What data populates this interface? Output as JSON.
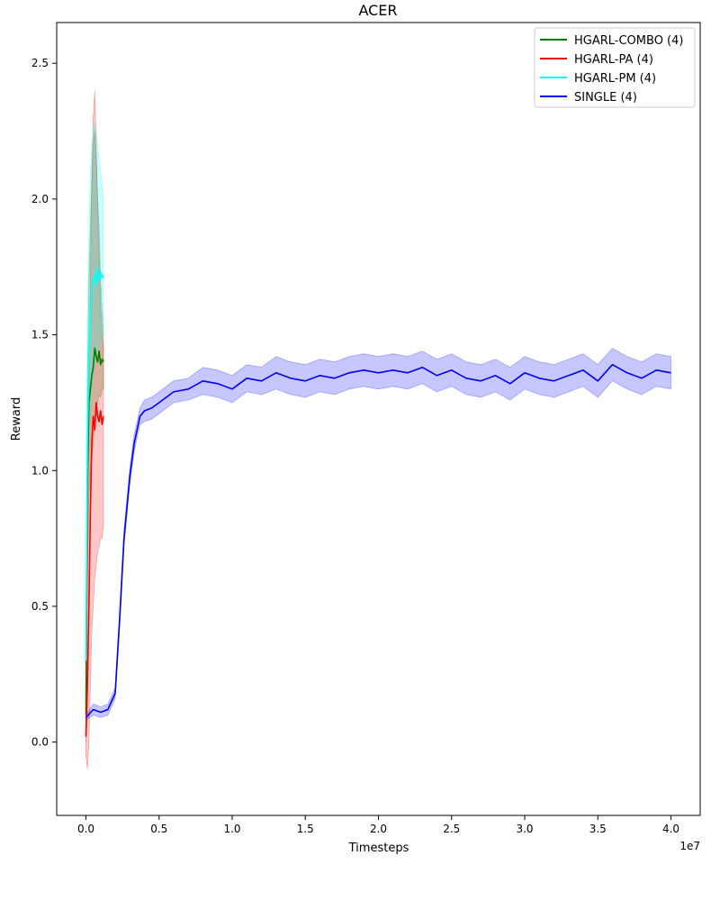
{
  "chart_data": {
    "type": "line",
    "title": "ACER",
    "xlabel": "Timesteps",
    "ylabel": "Reward",
    "x_offset_label": "1e7",
    "xlim": [
      -2000000,
      42000000
    ],
    "ylim": [
      -0.27,
      2.65
    ],
    "x_ticks": [
      0,
      5000000,
      10000000,
      15000000,
      20000000,
      25000000,
      30000000,
      35000000,
      40000000
    ],
    "x_tick_labels": [
      "0.0",
      "0.5",
      "1.0",
      "1.5",
      "2.0",
      "2.5",
      "3.0",
      "3.5",
      "4.0"
    ],
    "y_ticks": [
      0.0,
      0.5,
      1.0,
      1.5,
      2.0,
      2.5
    ],
    "y_tick_labels": [
      "0.0",
      "0.5",
      "1.0",
      "1.5",
      "2.0",
      "2.5"
    ],
    "grid": false,
    "legend_position": "top-right",
    "series": [
      {
        "name": "HGARL-COMBO (4)",
        "color": "#008000",
        "x": [
          0,
          100000,
          200000,
          300000,
          400000,
          500000,
          600000,
          700000,
          800000,
          900000,
          1000000,
          1100000,
          1200000
        ],
        "values": [
          0.1,
          0.95,
          1.25,
          1.3,
          1.35,
          1.38,
          1.45,
          1.42,
          1.4,
          1.44,
          1.39,
          1.41,
          1.4
        ],
        "band_low": [
          0.0,
          0.6,
          0.9,
          1.0,
          1.05,
          1.1,
          1.2,
          1.2,
          1.25,
          1.28,
          1.27,
          1.3,
          1.3
        ],
        "band_high": [
          0.3,
          1.3,
          1.7,
          1.9,
          2.05,
          2.2,
          2.25,
          2.15,
          2.0,
          1.9,
          1.7,
          1.6,
          1.5
        ]
      },
      {
        "name": "HGARL-PA (4)",
        "color": "#ff0000",
        "x": [
          0,
          100000,
          200000,
          300000,
          400000,
          500000,
          600000,
          700000,
          800000,
          900000,
          1000000,
          1100000,
          1200000
        ],
        "values": [
          0.02,
          0.2,
          0.5,
          0.85,
          1.1,
          1.2,
          1.15,
          1.25,
          1.2,
          1.18,
          1.22,
          1.17,
          1.2
        ],
        "band_low": [
          -0.05,
          -0.1,
          0.0,
          0.2,
          0.4,
          0.5,
          0.6,
          0.65,
          0.7,
          0.72,
          0.75,
          0.75,
          0.8
        ],
        "band_high": [
          0.1,
          0.6,
          1.2,
          1.7,
          2.1,
          2.3,
          2.4,
          2.2,
          2.0,
          1.8,
          1.6,
          1.5,
          1.45
        ]
      },
      {
        "name": "HGARL-PM (4)",
        "color": "#00ffff",
        "x": [
          0,
          100000,
          200000,
          300000,
          400000,
          500000,
          600000,
          700000,
          800000,
          900000,
          1000000,
          1100000,
          1200000
        ],
        "values": [
          0.3,
          1.1,
          1.4,
          1.55,
          1.65,
          1.7,
          1.72,
          1.68,
          1.75,
          1.7,
          1.73,
          1.71,
          1.72
        ],
        "band_low": [
          0.0,
          0.8,
          1.1,
          1.2,
          1.3,
          1.35,
          1.4,
          1.42,
          1.45,
          1.45,
          1.48,
          1.5,
          1.5
        ],
        "band_high": [
          0.6,
          1.5,
          1.9,
          2.1,
          2.2,
          2.25,
          2.28,
          2.25,
          2.2,
          2.15,
          2.1,
          2.05,
          2.0
        ]
      },
      {
        "name": "SINGLE (4)",
        "color": "#0000ff",
        "x": [
          0,
          500000,
          1000000,
          1500000,
          2000000,
          2300000,
          2600000,
          3000000,
          3300000,
          3700000,
          4000000,
          4500000,
          5000000,
          5500000,
          6000000,
          7000000,
          8000000,
          9000000,
          10000000,
          11000000,
          12000000,
          13000000,
          14000000,
          15000000,
          16000000,
          17000000,
          18000000,
          19000000,
          20000000,
          21000000,
          22000000,
          23000000,
          24000000,
          25000000,
          26000000,
          27000000,
          28000000,
          29000000,
          30000000,
          31000000,
          32000000,
          33000000,
          34000000,
          35000000,
          36000000,
          37000000,
          38000000,
          39000000,
          40000000
        ],
        "values": [
          0.09,
          0.12,
          0.11,
          0.12,
          0.18,
          0.45,
          0.75,
          0.98,
          1.1,
          1.2,
          1.22,
          1.23,
          1.25,
          1.27,
          1.29,
          1.3,
          1.33,
          1.32,
          1.3,
          1.34,
          1.33,
          1.36,
          1.34,
          1.33,
          1.35,
          1.34,
          1.36,
          1.37,
          1.36,
          1.37,
          1.36,
          1.38,
          1.35,
          1.37,
          1.34,
          1.33,
          1.35,
          1.32,
          1.36,
          1.34,
          1.33,
          1.35,
          1.37,
          1.33,
          1.39,
          1.36,
          1.34,
          1.37,
          1.36
        ],
        "band_low": [
          0.08,
          0.1,
          0.09,
          0.1,
          0.16,
          0.42,
          0.72,
          0.95,
          1.07,
          1.17,
          1.18,
          1.19,
          1.21,
          1.23,
          1.25,
          1.26,
          1.28,
          1.27,
          1.25,
          1.29,
          1.28,
          1.3,
          1.28,
          1.27,
          1.29,
          1.28,
          1.3,
          1.31,
          1.3,
          1.31,
          1.3,
          1.32,
          1.29,
          1.31,
          1.28,
          1.27,
          1.29,
          1.26,
          1.3,
          1.28,
          1.27,
          1.29,
          1.31,
          1.27,
          1.33,
          1.3,
          1.28,
          1.31,
          1.3
        ],
        "band_high": [
          0.1,
          0.14,
          0.13,
          0.14,
          0.2,
          0.48,
          0.78,
          1.01,
          1.13,
          1.23,
          1.26,
          1.27,
          1.29,
          1.31,
          1.33,
          1.34,
          1.38,
          1.37,
          1.35,
          1.39,
          1.38,
          1.42,
          1.4,
          1.39,
          1.41,
          1.4,
          1.42,
          1.43,
          1.42,
          1.43,
          1.42,
          1.44,
          1.41,
          1.43,
          1.4,
          1.39,
          1.41,
          1.38,
          1.42,
          1.4,
          1.39,
          1.41,
          1.43,
          1.39,
          1.45,
          1.42,
          1.4,
          1.43,
          1.42
        ]
      }
    ]
  }
}
